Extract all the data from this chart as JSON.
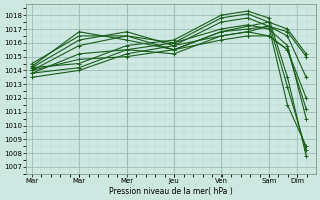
{
  "bg_color": "#cce8e0",
  "grid_color_major": "#9bbdb8",
  "grid_color_minor": "#b8d8d2",
  "line_color": "#1a5c1a",
  "xlabel": "Pression niveau de la mer( hPa )",
  "ylim": [
    1006.5,
    1018.8
  ],
  "xlim": [
    -0.1,
    5.0
  ],
  "yticks": [
    1007,
    1008,
    1009,
    1010,
    1011,
    1012,
    1013,
    1014,
    1015,
    1016,
    1017,
    1018
  ],
  "xtick_positions": [
    0.0,
    0.83,
    1.67,
    2.5,
    3.33,
    4.17,
    4.67
  ],
  "xtick_labels": [
    "Mar",
    "Mar",
    "Mer",
    "Jeu",
    "Ven",
    "Sam",
    "Dim"
  ],
  "vline_positions": [
    0.83,
    1.67,
    2.5,
    3.33,
    4.17
  ],
  "lines": [
    {
      "x": [
        0.0,
        0.83,
        1.67,
        2.5,
        3.33,
        3.8,
        4.17,
        4.5,
        4.83
      ],
      "y": [
        1014.2,
        1014.5,
        1015.8,
        1016.2,
        1018.0,
        1018.3,
        1017.8,
        1013.5,
        1007.8
      ]
    },
    {
      "x": [
        0.0,
        0.83,
        1.67,
        2.5,
        3.33,
        3.8,
        4.17,
        4.5,
        4.83
      ],
      "y": [
        1013.8,
        1014.2,
        1015.5,
        1016.0,
        1017.8,
        1018.1,
        1017.5,
        1012.8,
        1008.2
      ]
    },
    {
      "x": [
        0.0,
        0.83,
        1.67,
        2.5,
        3.33,
        3.8,
        4.17,
        4.5,
        4.83
      ],
      "y": [
        1013.5,
        1014.0,
        1015.2,
        1015.8,
        1017.5,
        1017.8,
        1017.2,
        1011.5,
        1008.5
      ]
    },
    {
      "x": [
        0.0,
        0.83,
        1.67,
        2.5,
        3.33,
        3.8,
        4.17,
        4.5,
        4.83
      ],
      "y": [
        1014.0,
        1015.8,
        1016.5,
        1016.0,
        1017.0,
        1017.3,
        1017.0,
        1015.8,
        1010.5
      ]
    },
    {
      "x": [
        0.0,
        0.83,
        1.67,
        2.5,
        3.33,
        3.8,
        4.17,
        4.5,
        4.83
      ],
      "y": [
        1014.2,
        1016.2,
        1016.8,
        1015.8,
        1016.5,
        1016.8,
        1016.5,
        1015.5,
        1011.2
      ]
    },
    {
      "x": [
        0.0,
        0.83,
        1.67,
        2.5,
        3.33,
        3.8,
        4.17,
        4.5,
        4.83
      ],
      "y": [
        1014.5,
        1016.5,
        1016.5,
        1015.5,
        1016.2,
        1016.5,
        1016.5,
        1015.5,
        1012.0
      ]
    },
    {
      "x": [
        0.0,
        0.83,
        1.67,
        2.5,
        3.33,
        3.8,
        4.17,
        4.5,
        4.83
      ],
      "y": [
        1014.3,
        1016.8,
        1016.2,
        1015.5,
        1016.8,
        1017.0,
        1017.2,
        1016.5,
        1013.5
      ]
    },
    {
      "x": [
        0.0,
        0.83,
        1.67,
        2.5,
        3.33,
        3.8,
        4.17,
        4.5,
        4.83
      ],
      "y": [
        1013.8,
        1015.2,
        1015.5,
        1015.2,
        1016.5,
        1016.8,
        1017.2,
        1016.8,
        1015.0
      ]
    },
    {
      "x": [
        0.0,
        0.83,
        1.67,
        2.5,
        3.33,
        3.8,
        4.17,
        4.5,
        4.83
      ],
      "y": [
        1014.0,
        1014.8,
        1015.0,
        1015.5,
        1016.8,
        1017.2,
        1017.5,
        1017.0,
        1015.2
      ]
    }
  ]
}
